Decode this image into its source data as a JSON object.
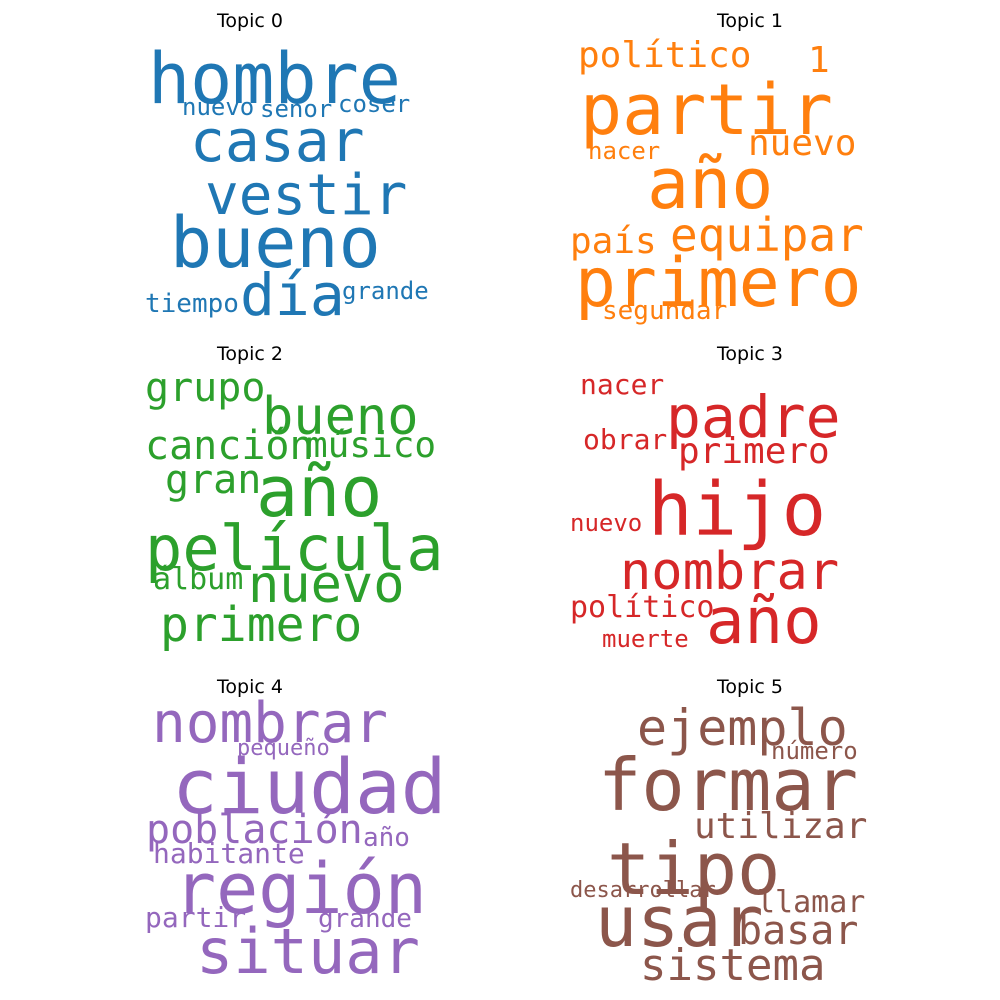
{
  "chart_data": [
    {
      "type": "wordcloud",
      "title": "Topic 0",
      "color": "#1f77b4",
      "words": [
        {
          "text": "hombre",
          "weight": 70
        },
        {
          "text": "casar",
          "weight": 58
        },
        {
          "text": "vestir",
          "weight": 56
        },
        {
          "text": "bueno",
          "weight": 70
        },
        {
          "text": "día",
          "weight": 58
        },
        {
          "text": "nuevo",
          "weight": 24
        },
        {
          "text": "señor",
          "weight": 24
        },
        {
          "text": "coser",
          "weight": 24
        },
        {
          "text": "tiempo",
          "weight": 26
        },
        {
          "text": "grande",
          "weight": 24
        }
      ]
    },
    {
      "type": "wordcloud",
      "title": "Topic 1",
      "color": "#ff7f0e",
      "words": [
        {
          "text": "político",
          "weight": 36
        },
        {
          "text": "1",
          "weight": 36
        },
        {
          "text": "partir",
          "weight": 70
        },
        {
          "text": "nuevo",
          "weight": 36
        },
        {
          "text": "nacer",
          "weight": 24
        },
        {
          "text": "año",
          "weight": 70
        },
        {
          "text": "equipar",
          "weight": 46
        },
        {
          "text": "país",
          "weight": 36
        },
        {
          "text": "primero",
          "weight": 68
        },
        {
          "text": "segundar",
          "weight": 26
        }
      ]
    },
    {
      "type": "wordcloud",
      "title": "Topic 2",
      "color": "#2ca02c",
      "words": [
        {
          "text": "grupo",
          "weight": 40
        },
        {
          "text": "bueno",
          "weight": 52
        },
        {
          "text": "canción",
          "weight": 40
        },
        {
          "text": "músico",
          "weight": 36
        },
        {
          "text": "gran",
          "weight": 40
        },
        {
          "text": "año",
          "weight": 70
        },
        {
          "text": "película",
          "weight": 62
        },
        {
          "text": "álbum",
          "weight": 30
        },
        {
          "text": "nuevo",
          "weight": 52
        },
        {
          "text": "primero",
          "weight": 48
        }
      ]
    },
    {
      "type": "wordcloud",
      "title": "Topic 3",
      "color": "#d62728",
      "words": [
        {
          "text": "nacer",
          "weight": 28
        },
        {
          "text": "padre",
          "weight": 58
        },
        {
          "text": "obrar",
          "weight": 28
        },
        {
          "text": "primero",
          "weight": 36
        },
        {
          "text": "hijo",
          "weight": 74
        },
        {
          "text": "nuevo",
          "weight": 24
        },
        {
          "text": "nombrar",
          "weight": 52
        },
        {
          "text": "político",
          "weight": 30
        },
        {
          "text": "año",
          "weight": 64
        },
        {
          "text": "muerte",
          "weight": 24
        }
      ]
    },
    {
      "type": "wordcloud",
      "title": "Topic 4",
      "color": "#9467bd",
      "words": [
        {
          "text": "nombrar",
          "weight": 56
        },
        {
          "text": "pequeño",
          "weight": 22
        },
        {
          "text": "ciudad",
          "weight": 76
        },
        {
          "text": "población",
          "weight": 40
        },
        {
          "text": "año",
          "weight": 26
        },
        {
          "text": "habitante",
          "weight": 28
        },
        {
          "text": "región",
          "weight": 70
        },
        {
          "text": "partir",
          "weight": 28
        },
        {
          "text": "grande",
          "weight": 26
        },
        {
          "text": "situar",
          "weight": 62
        }
      ]
    },
    {
      "type": "wordcloud",
      "title": "Topic 5",
      "color": "#8c564b",
      "words": [
        {
          "text": "ejemplo",
          "weight": 50
        },
        {
          "text": "número",
          "weight": 24
        },
        {
          "text": "formar",
          "weight": 72
        },
        {
          "text": "utilizar",
          "weight": 36
        },
        {
          "text": "tipo",
          "weight": 72
        },
        {
          "text": "desarrollar",
          "weight": 22
        },
        {
          "text": "llamar",
          "weight": 30
        },
        {
          "text": "usar",
          "weight": 70
        },
        {
          "text": "basar",
          "weight": 40
        },
        {
          "text": "sistema",
          "weight": 44
        }
      ]
    }
  ]
}
